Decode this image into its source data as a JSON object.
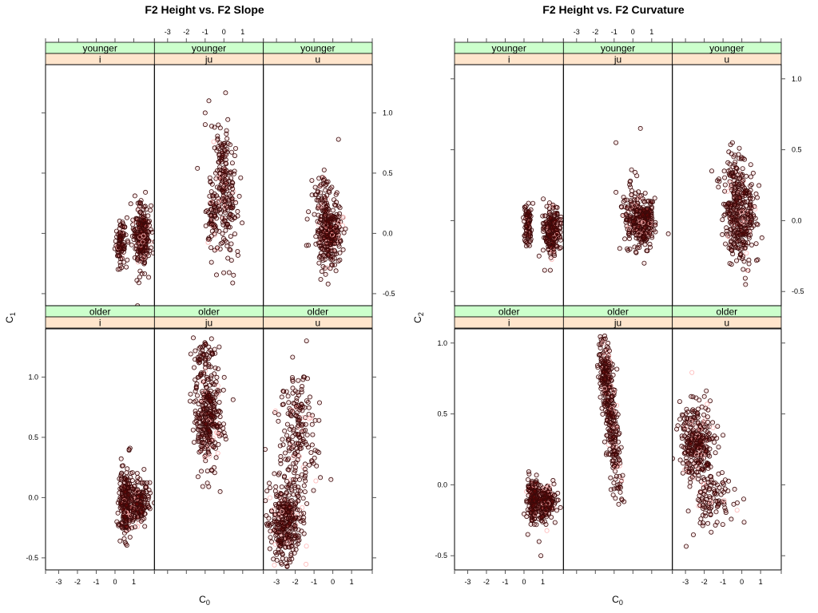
{
  "colors": {
    "strip_top": "#ccffcc",
    "strip_bottom": "#ffe5cc",
    "point_stroke": "#3a0a0a",
    "point_fill_dense": "#aa0000",
    "point_faint": "#ffb6b6"
  },
  "chart_data": [
    {
      "type": "scatter",
      "title": "F2 Height vs. F2 Slope",
      "xlabel": "C0",
      "xlabel_main": "C",
      "xlabel_sub": "0",
      "ylabel": "C1",
      "ylabel_main": "C",
      "ylabel_sub": "1",
      "xlim": [
        -3.7,
        2.1
      ],
      "ylim": [
        -0.6,
        1.4
      ],
      "x_ticks": [
        -3,
        -2,
        -1,
        0,
        1
      ],
      "x_tick_labels": [
        "-3",
        "-2",
        "-1",
        "0",
        "1"
      ],
      "y_ticks": [
        -0.5,
        0.0,
        0.5,
        1.0
      ],
      "y_tick_labels": [
        "-0.5",
        "0.0",
        "0.5",
        "1.0"
      ],
      "grid": false,
      "layout": "3 columns x 2 rows",
      "panels": [
        {
          "age": "younger",
          "vowel": "i",
          "row": "top",
          "col": 0,
          "clusters": [
            {
              "cx": 0.3,
              "cy": -0.08,
              "sx": 0.15,
              "sy": 0.09,
              "n": 90
            },
            {
              "cx": 1.4,
              "cy": -0.02,
              "sx": 0.22,
              "sy": 0.13,
              "n": 260
            }
          ],
          "outliers": [
            [
              1.2,
              -0.6
            ]
          ]
        },
        {
          "age": "younger",
          "vowel": "ju",
          "row": "top",
          "col": 1,
          "clusters": [
            {
              "cx": 0.0,
              "cy": 0.4,
              "sx": 0.35,
              "sy": 0.25,
              "n": 230,
              "tilt": -0.25
            },
            {
              "cx": -0.6,
              "cy": 0.1,
              "sx": 0.2,
              "sy": 0.12,
              "n": 60
            }
          ],
          "outliers": [
            [
              -0.8,
              1.1
            ],
            [
              -1.0,
              1.0
            ],
            [
              -0.3,
              0.9
            ],
            [
              -0.5,
              0.88
            ]
          ]
        },
        {
          "age": "younger",
          "vowel": "u",
          "row": "top",
          "col": 2,
          "clusters": [
            {
              "cx": -0.2,
              "cy": 0.0,
              "sx": 0.35,
              "sy": 0.13,
              "n": 320
            },
            {
              "cx": -0.4,
              "cy": 0.35,
              "sx": 0.3,
              "sy": 0.1,
              "n": 40
            }
          ],
          "outliers": [
            [
              0.3,
              0.78
            ],
            [
              -1.3,
              0.18
            ],
            [
              -1.4,
              -0.1
            ]
          ]
        },
        {
          "age": "older",
          "vowel": "i",
          "row": "bottom",
          "col": 0,
          "clusters": [
            {
              "cx": 0.55,
              "cy": -0.05,
              "sx": 0.15,
              "sy": 0.13,
              "n": 220
            },
            {
              "cx": 1.3,
              "cy": -0.05,
              "sx": 0.25,
              "sy": 0.1,
              "n": 180
            }
          ],
          "outliers": [
            [
              0.8,
              0.41
            ],
            [
              0.75,
              0.4
            ]
          ]
        },
        {
          "age": "older",
          "vowel": "ju",
          "row": "bottom",
          "col": 1,
          "clusters": [
            {
              "cx": -0.85,
              "cy": 0.65,
              "sx": 0.35,
              "sy": 0.2,
              "n": 300
            },
            {
              "cx": -1.0,
              "cy": 1.15,
              "sx": 0.3,
              "sy": 0.1,
              "n": 60
            }
          ],
          "outliers": [
            [
              -0.2,
              0.05
            ],
            [
              -1.8,
              0.8
            ]
          ]
        },
        {
          "age": "older",
          "vowel": "u",
          "row": "bottom",
          "col": 2,
          "clusters": [
            {
              "cx": -2.5,
              "cy": -0.2,
              "sx": 0.45,
              "sy": 0.17,
              "n": 330
            },
            {
              "cx": -1.9,
              "cy": 0.65,
              "sx": 0.5,
              "sy": 0.2,
              "n": 140
            },
            {
              "cx": -1.7,
              "cy": 0.2,
              "sx": 0.5,
              "sy": 0.12,
              "n": 50
            }
          ],
          "outliers": [
            [
              -3.6,
              0.4
            ],
            [
              -1.4,
              1.3
            ],
            [
              -0.1,
              0.15
            ]
          ]
        }
      ]
    },
    {
      "type": "scatter",
      "title": "F2 Height vs. F2 Curvature",
      "xlabel": "C0",
      "xlabel_main": "C",
      "xlabel_sub": "0",
      "ylabel": "C2",
      "ylabel_main": "C",
      "ylabel_sub": "2",
      "xlim": [
        -3.7,
        2.1
      ],
      "ylim": [
        -0.6,
        1.1
      ],
      "x_ticks": [
        -3,
        -2,
        -1,
        0,
        1
      ],
      "x_tick_labels": [
        "-3",
        "-2",
        "-1",
        "0",
        "1"
      ],
      "y_ticks": [
        -0.5,
        0.0,
        0.5,
        1.0
      ],
      "y_tick_labels": [
        "-0.5",
        "0.0",
        "0.5",
        "1.0"
      ],
      "grid": false,
      "layout": "3 columns x 2 rows",
      "panels": [
        {
          "age": "younger",
          "vowel": "i",
          "row": "top",
          "col": 0,
          "clusters": [
            {
              "cx": 0.2,
              "cy": -0.03,
              "sx": 0.12,
              "sy": 0.08,
              "n": 90
            },
            {
              "cx": 1.5,
              "cy": -0.07,
              "sx": 0.2,
              "sy": 0.07,
              "n": 250
            }
          ],
          "outliers": [
            [
              0.8,
              -0.25
            ],
            [
              1.1,
              -0.35
            ],
            [
              1.4,
              -0.35
            ]
          ]
        },
        {
          "age": "younger",
          "vowel": "ju",
          "row": "top",
          "col": 1,
          "clusters": [
            {
              "cx": 0.6,
              "cy": -0.02,
              "sx": 0.3,
              "sy": 0.08,
              "n": 220
            },
            {
              "cx": 0.0,
              "cy": 0.05,
              "sx": 0.3,
              "sy": 0.12,
              "n": 110
            }
          ],
          "outliers": [
            [
              0.4,
              0.65
            ],
            [
              -0.9,
              0.55
            ],
            [
              -0.9,
              0.2
            ],
            [
              0.6,
              -0.3
            ]
          ]
        },
        {
          "age": "younger",
          "vowel": "u",
          "row": "top",
          "col": 2,
          "clusters": [
            {
              "cx": -0.1,
              "cy": 0.02,
              "sx": 0.4,
              "sy": 0.17,
              "n": 330
            },
            {
              "cx": -0.6,
              "cy": 0.3,
              "sx": 0.35,
              "sy": 0.1,
              "n": 50
            }
          ],
          "outliers": [
            [
              -1.6,
              0.35
            ],
            [
              0.2,
              -0.45
            ],
            [
              -0.5,
              0.55
            ]
          ]
        },
        {
          "age": "older",
          "vowel": "i",
          "row": "bottom",
          "col": 0,
          "clusters": [
            {
              "cx": 0.5,
              "cy": -0.1,
              "sx": 0.15,
              "sy": 0.07,
              "n": 200
            },
            {
              "cx": 1.2,
              "cy": -0.12,
              "sx": 0.25,
              "sy": 0.06,
              "n": 180
            }
          ],
          "outliers": [
            [
              0.9,
              -0.5
            ],
            [
              0.2,
              -0.35
            ],
            [
              0.8,
              -0.4
            ]
          ]
        },
        {
          "age": "older",
          "vowel": "ju",
          "row": "bottom",
          "col": 1,
          "clusters": [
            {
              "cx": -1.2,
              "cy": 0.5,
              "sx": 0.25,
              "sy": 0.18,
              "n": 290,
              "tilt": -0.8
            },
            {
              "cx": -1.5,
              "cy": 0.8,
              "sx": 0.2,
              "sy": 0.08,
              "n": 60
            }
          ],
          "outliers": [
            [
              -1.5,
              1.05
            ],
            [
              -0.6,
              -0.1
            ],
            [
              -0.8,
              0.0
            ]
          ]
        },
        {
          "age": "older",
          "vowel": "u",
          "row": "bottom",
          "col": 2,
          "clusters": [
            {
              "cx": -2.4,
              "cy": 0.3,
              "sx": 0.45,
              "sy": 0.13,
              "n": 300
            },
            {
              "cx": -1.6,
              "cy": -0.1,
              "sx": 0.6,
              "sy": 0.12,
              "n": 110
            }
          ],
          "outliers": [
            [
              -1.0,
              0.35
            ],
            [
              0.1,
              -0.1
            ],
            [
              -2.7,
              0.2
            ]
          ]
        }
      ]
    }
  ]
}
